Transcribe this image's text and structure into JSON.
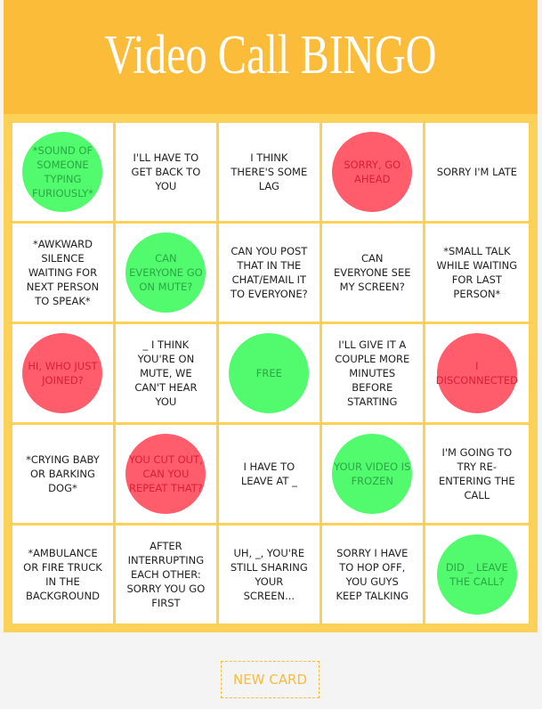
{
  "header": {
    "title": "Video Call BINGO"
  },
  "markers": {
    "green": {
      "fill": "#52fa6e",
      "text": "#2ba646"
    },
    "red": {
      "fill": "#ff5c6c",
      "text": "#d92038"
    }
  },
  "cells": [
    {
      "text": "*SOUND OF SOMEONE TYPING FURIOUSLY*",
      "marker": "green"
    },
    {
      "text": "I'LL HAVE TO GET BACK TO YOU"
    },
    {
      "text": "I THINK THERE'S SOME LAG"
    },
    {
      "text": "SORRY, GO AHEAD",
      "marker": "red"
    },
    {
      "text": "SORRY I'M LATE"
    },
    {
      "text": "*AWKWARD SILENCE WAITING FOR NEXT PERSON TO SPEAK*"
    },
    {
      "text": "CAN EVERYONE GO ON MUTE?",
      "marker": "green"
    },
    {
      "text": "CAN YOU POST THAT IN THE CHAT/EMAIL IT TO EVERYONE?"
    },
    {
      "text": "CAN EVERYONE SEE MY SCREEN?"
    },
    {
      "text": "*SMALL TALK WHILE WAITING FOR LAST PERSON*"
    },
    {
      "text": "HI, WHO JUST JOINED?",
      "marker": "red"
    },
    {
      "text": "_ I THINK YOU'RE ON MUTE, WE CAN'T HEAR YOU"
    },
    {
      "text": "FREE",
      "marker": "green"
    },
    {
      "text": "I'LL GIVE IT A COUPLE MORE MINUTES BEFORE STARTING"
    },
    {
      "text": "I DISCONNECTED",
      "marker": "red"
    },
    {
      "text": "*CRYING BABY OR BARKING DOG*"
    },
    {
      "text": "YOU CUT OUT, CAN YOU REPEAT THAT?",
      "marker": "red"
    },
    {
      "text": "I HAVE TO LEAVE AT _"
    },
    {
      "text": "YOUR VIDEO IS FROZEN",
      "marker": "green"
    },
    {
      "text": "I'M GOING TO TRY RE-ENTERING THE CALL"
    },
    {
      "text": "*AMBULANCE OR FIRE TRUCK IN THE BACKGROUND"
    },
    {
      "text": "AFTER INTERRUPTING EACH OTHER: SORRY YOU GO FIRST"
    },
    {
      "text": "UH, _, YOU'RE STILL SHARING YOUR SCREEN..."
    },
    {
      "text": "SORRY I HAVE TO HOP OFF, YOU GUYS KEEP TALKING"
    },
    {
      "text": "DID _ LEAVE THE CALL?",
      "marker": "green"
    }
  ],
  "button": {
    "label": "NEW CARD"
  }
}
